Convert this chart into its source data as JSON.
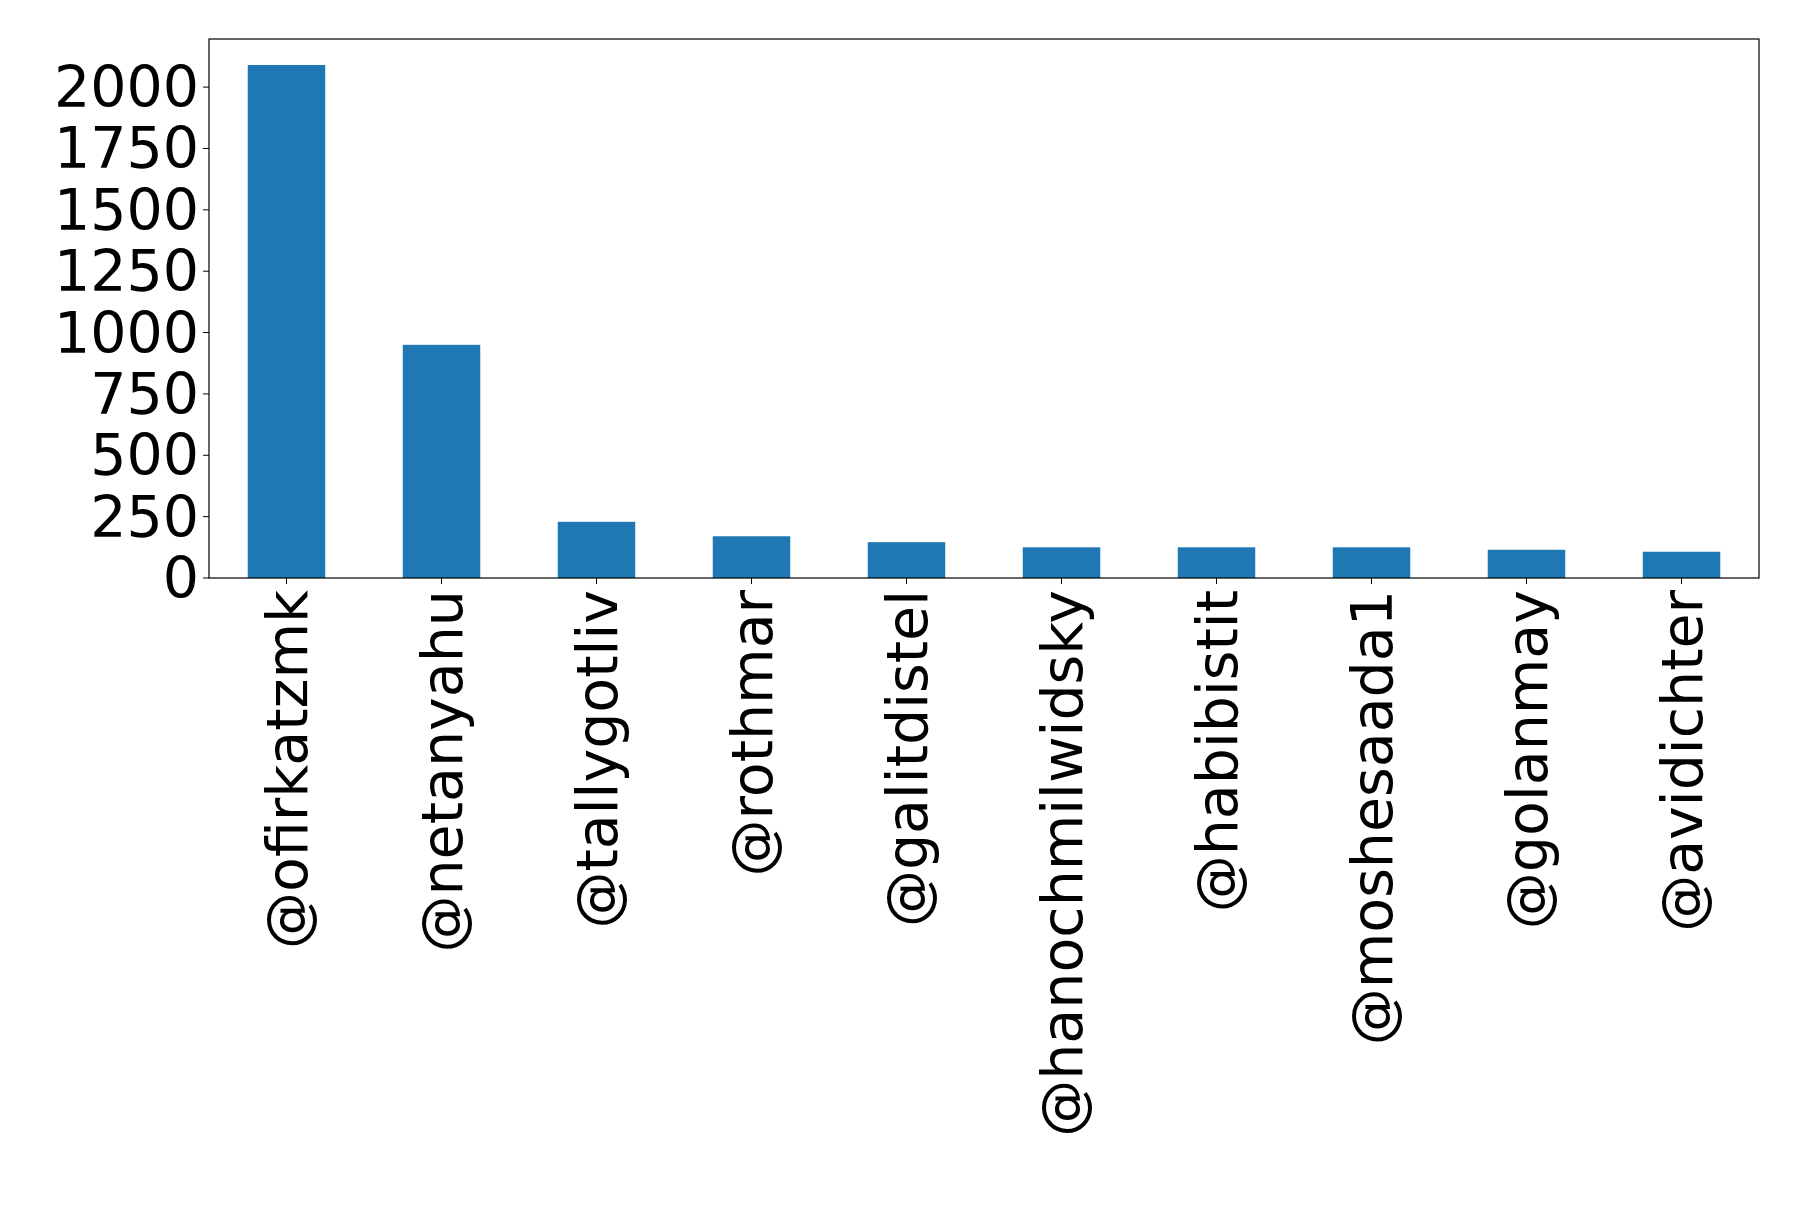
{
  "chart_data": {
    "type": "bar",
    "categories": [
      "@ofirkatzmk",
      "@netanyahu",
      "@tallygotliv",
      "@rothmar",
      "@galitdistel",
      "@hanochmilwidsky",
      "@habibistit",
      "@moshesaada1",
      "@golanmay",
      "@avidichter"
    ],
    "values": [
      2090,
      950,
      229,
      170,
      146,
      125,
      125,
      125,
      115,
      107
    ],
    "color": "#1f77b4",
    "ylim": [
      0,
      2196
    ],
    "yticks": [
      0,
      250,
      500,
      750,
      1000,
      1250,
      1500,
      1750,
      2000
    ],
    "grid": false
  }
}
